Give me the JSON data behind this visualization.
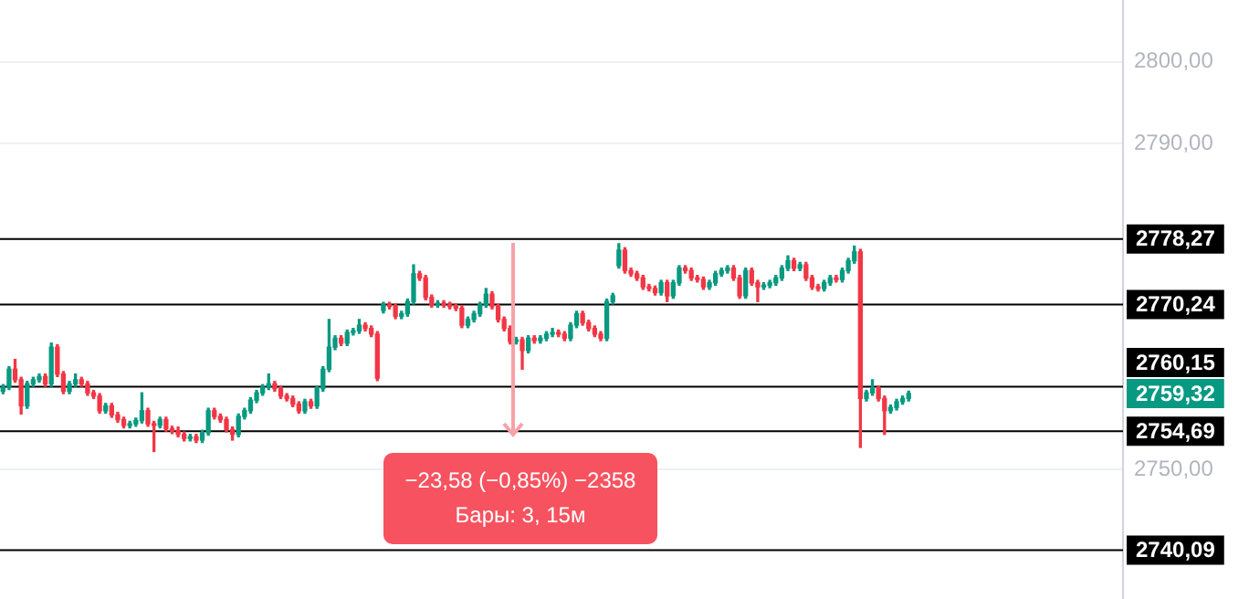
{
  "chart_data": {
    "type": "candlestick",
    "categories": [
      null,
      null,
      null,
      null,
      null,
      null,
      null,
      null,
      null,
      null,
      null,
      null,
      null,
      null,
      null,
      null,
      null,
      null,
      null,
      null,
      null,
      null,
      null,
      null,
      null,
      null,
      null,
      null,
      null,
      null,
      null,
      null,
      null,
      null,
      null,
      null,
      null,
      null,
      null,
      null,
      null,
      null,
      null,
      null,
      null,
      null,
      null,
      null,
      null,
      null,
      null,
      null,
      null,
      null,
      null,
      null,
      null,
      null,
      null,
      null,
      null,
      null,
      null,
      null,
      null,
      null,
      null,
      null,
      null,
      null,
      null,
      null,
      null,
      null,
      null,
      null,
      null,
      null,
      null,
      null,
      null,
      null,
      null,
      null,
      null,
      null,
      null,
      null,
      null,
      null,
      null,
      null,
      null,
      null,
      null,
      null,
      null,
      null,
      null,
      null,
      null,
      null,
      null,
      null,
      null,
      null,
      null,
      null,
      null,
      null,
      null,
      null,
      null,
      null,
      null,
      null,
      null,
      null,
      null,
      null,
      null,
      null,
      null,
      null,
      null,
      null,
      null,
      null,
      null,
      null,
      null,
      null,
      null,
      null,
      null,
      null,
      null,
      null,
      null,
      null,
      null,
      null,
      null,
      null,
      null,
      null,
      null,
      null,
      null,
      null,
      null,
      null,
      null,
      null,
      null,
      null,
      null,
      null,
      null,
      null,
      null,
      null,
      null,
      null,
      null,
      null,
      null,
      null,
      null,
      null,
      null,
      null,
      null,
      null,
      null,
      null,
      null,
      null,
      null,
      null,
      null,
      null,
      null,
      null,
      null,
      null
    ],
    "ohlc": [
      [
        2759.6,
        2760.4,
        2759.3,
        2760.1
      ],
      [
        2760.1,
        2762.6,
        2759.8,
        2762.3
      ],
      [
        2762.3,
        2763.5,
        2760.7,
        2761.0
      ],
      [
        2761.0,
        2761.3,
        2756.8,
        2757.8
      ],
      [
        2757.8,
        2760.8,
        2757.5,
        2760.5
      ],
      [
        2760.5,
        2761.3,
        2760.2,
        2761.0
      ],
      [
        2761.0,
        2761.7,
        2760.7,
        2761.4
      ],
      [
        2761.4,
        2761.7,
        2760.2,
        2760.5
      ],
      [
        2760.5,
        2765.5,
        2760.2,
        2765.0
      ],
      [
        2765.0,
        2765.3,
        2761.4,
        2761.7
      ],
      [
        2761.7,
        2762.0,
        2759.3,
        2759.6
      ],
      [
        2759.6,
        2760.8,
        2759.3,
        2760.5
      ],
      [
        2760.5,
        2761.7,
        2760.2,
        2761.0
      ],
      [
        2761.0,
        2761.3,
        2760.2,
        2760.5
      ],
      [
        2760.5,
        2760.8,
        2759.1,
        2759.4
      ],
      [
        2759.4,
        2759.7,
        2758.7,
        2759.0
      ],
      [
        2759.0,
        2759.3,
        2756.9,
        2757.2
      ],
      [
        2757.2,
        2758.1,
        2756.9,
        2757.8
      ],
      [
        2757.8,
        2758.1,
        2756.4,
        2756.7
      ],
      [
        2756.7,
        2757.0,
        2755.8,
        2756.1
      ],
      [
        2756.1,
        2756.4,
        2755.1,
        2755.4
      ],
      [
        2755.4,
        2755.9,
        2755.1,
        2755.6
      ],
      [
        2755.6,
        2756.3,
        2755.3,
        2756.0
      ],
      [
        2756.0,
        2759.4,
        2755.7,
        2757.2
      ],
      [
        2757.2,
        2757.5,
        2755.3,
        2755.6
      ],
      [
        2755.6,
        2755.9,
        2752.2,
        2755.4
      ],
      [
        2755.4,
        2756.4,
        2755.1,
        2756.1
      ],
      [
        2756.1,
        2756.4,
        2754.7,
        2755.0
      ],
      [
        2755.0,
        2755.3,
        2754.4,
        2754.7
      ],
      [
        2754.7,
        2755.2,
        2754.0,
        2754.3
      ],
      [
        2754.3,
        2754.6,
        2753.5,
        2753.8
      ],
      [
        2753.8,
        2754.3,
        2753.5,
        2754.0
      ],
      [
        2754.0,
        2754.3,
        2753.3,
        2753.6
      ],
      [
        2753.6,
        2754.8,
        2753.3,
        2754.5
      ],
      [
        2754.5,
        2757.5,
        2754.2,
        2757.2
      ],
      [
        2757.2,
        2757.5,
        2756.2,
        2756.5
      ],
      [
        2756.5,
        2756.8,
        2755.8,
        2756.1
      ],
      [
        2756.1,
        2756.4,
        2754.6,
        2754.9
      ],
      [
        2754.9,
        2755.2,
        2753.6,
        2754.3
      ],
      [
        2754.3,
        2756.8,
        2754.0,
        2756.5
      ],
      [
        2756.5,
        2757.5,
        2756.2,
        2757.2
      ],
      [
        2757.2,
        2758.8,
        2756.9,
        2758.5
      ],
      [
        2758.5,
        2759.7,
        2758.2,
        2759.4
      ],
      [
        2759.4,
        2760.4,
        2759.1,
        2760.1
      ],
      [
        2760.1,
        2761.7,
        2759.8,
        2760.5
      ],
      [
        2760.5,
        2760.8,
        2759.6,
        2759.9
      ],
      [
        2759.9,
        2760.2,
        2758.7,
        2759.0
      ],
      [
        2759.0,
        2759.3,
        2758.4,
        2758.7
      ],
      [
        2758.7,
        2759.0,
        2757.7,
        2758.0
      ],
      [
        2758.0,
        2758.3,
        2756.9,
        2757.2
      ],
      [
        2757.2,
        2758.6,
        2756.9,
        2758.3
      ],
      [
        2758.3,
        2758.6,
        2757.5,
        2757.8
      ],
      [
        2757.8,
        2760.2,
        2757.5,
        2759.9
      ],
      [
        2759.9,
        2762.6,
        2759.6,
        2762.3
      ],
      [
        2762.3,
        2768.4,
        2762.0,
        2765.0
      ],
      [
        2765.0,
        2766.4,
        2764.7,
        2766.1
      ],
      [
        2766.1,
        2766.4,
        2765.2,
        2765.5
      ],
      [
        2765.5,
        2767.1,
        2765.2,
        2766.8
      ],
      [
        2766.8,
        2767.3,
        2766.5,
        2767.0
      ],
      [
        2767.0,
        2768.4,
        2766.7,
        2767.7
      ],
      [
        2767.7,
        2768.0,
        2767.0,
        2767.3
      ],
      [
        2767.3,
        2767.6,
        2766.3,
        2766.6
      ],
      [
        2766.6,
        2766.9,
        2760.9,
        2761.2
      ],
      [
        2769.5,
        2770.5,
        2769.2,
        2770.2
      ],
      [
        2770.2,
        2770.5,
        2769.7,
        2770.0
      ],
      [
        2770.0,
        2770.3,
        2768.5,
        2768.8
      ],
      [
        2768.8,
        2769.4,
        2768.5,
        2769.1
      ],
      [
        2769.1,
        2770.9,
        2768.8,
        2770.6
      ],
      [
        2770.6,
        2775.1,
        2770.3,
        2774.0
      ],
      [
        2774.0,
        2774.3,
        2773.2,
        2773.5
      ],
      [
        2773.5,
        2773.8,
        2770.8,
        2771.1
      ],
      [
        2771.1,
        2771.4,
        2769.9,
        2770.2
      ],
      [
        2770.2,
        2770.7,
        2769.9,
        2770.4
      ],
      [
        2770.4,
        2770.7,
        2769.9,
        2770.2
      ],
      [
        2770.2,
        2770.5,
        2769.7,
        2770.0
      ],
      [
        2770.0,
        2770.3,
        2769.5,
        2769.8
      ],
      [
        2769.8,
        2770.1,
        2767.4,
        2767.7
      ],
      [
        2767.7,
        2768.7,
        2767.4,
        2768.4
      ],
      [
        2768.4,
        2769.4,
        2768.1,
        2769.1
      ],
      [
        2769.1,
        2770.5,
        2768.8,
        2770.2
      ],
      [
        2770.2,
        2772.2,
        2769.9,
        2771.5
      ],
      [
        2771.5,
        2771.8,
        2769.7,
        2770.0
      ],
      [
        2770.0,
        2770.3,
        2768.1,
        2768.4
      ],
      [
        2768.4,
        2768.7,
        2767.0,
        2767.3
      ],
      [
        2767.3,
        2767.6,
        2765.4,
        2765.7
      ],
      [
        2765.7,
        2766.2,
        2765.4,
        2765.9
      ],
      [
        2765.9,
        2766.2,
        2762.3,
        2764.6
      ],
      [
        2764.6,
        2766.4,
        2764.3,
        2766.1
      ],
      [
        2766.1,
        2766.4,
        2765.5,
        2765.8
      ],
      [
        2765.8,
        2766.4,
        2765.5,
        2766.1
      ],
      [
        2766.1,
        2766.9,
        2765.8,
        2766.6
      ],
      [
        2766.6,
        2767.3,
        2766.3,
        2766.8
      ],
      [
        2766.8,
        2767.1,
        2766.3,
        2766.6
      ],
      [
        2766.6,
        2766.9,
        2765.8,
        2766.1
      ],
      [
        2766.1,
        2768.0,
        2765.8,
        2767.7
      ],
      [
        2767.7,
        2769.4,
        2767.4,
        2769.1
      ],
      [
        2769.1,
        2769.4,
        2767.7,
        2768.0
      ],
      [
        2768.0,
        2768.3,
        2767.0,
        2767.3
      ],
      [
        2767.3,
        2767.6,
        2766.3,
        2766.6
      ],
      [
        2766.6,
        2766.9,
        2765.8,
        2766.1
      ],
      [
        2766.1,
        2770.9,
        2765.8,
        2770.6
      ],
      [
        2770.6,
        2771.6,
        2770.3,
        2771.3
      ],
      [
        2775.0,
        2777.7,
        2774.7,
        2776.9
      ],
      [
        2776.9,
        2777.2,
        2774.1,
        2774.4
      ],
      [
        2774.4,
        2774.7,
        2773.7,
        2774.0
      ],
      [
        2774.0,
        2774.3,
        2773.2,
        2773.5
      ],
      [
        2773.5,
        2773.8,
        2772.1,
        2772.4
      ],
      [
        2772.4,
        2772.7,
        2771.9,
        2772.2
      ],
      [
        2772.2,
        2772.5,
        2771.4,
        2771.7
      ],
      [
        2771.7,
        2773.2,
        2771.4,
        2772.9
      ],
      [
        2772.9,
        2773.2,
        2770.6,
        2771.3
      ],
      [
        2771.3,
        2773.2,
        2771.0,
        2772.9
      ],
      [
        2772.9,
        2775.0,
        2772.6,
        2774.7
      ],
      [
        2774.7,
        2775.0,
        2774.1,
        2774.4
      ],
      [
        2774.4,
        2774.7,
        2773.2,
        2773.5
      ],
      [
        2773.5,
        2773.8,
        2773.0,
        2773.3
      ],
      [
        2773.3,
        2773.6,
        2772.1,
        2772.4
      ],
      [
        2772.4,
        2773.2,
        2772.1,
        2772.9
      ],
      [
        2772.9,
        2774.3,
        2772.6,
        2774.0
      ],
      [
        2774.0,
        2774.7,
        2773.7,
        2774.4
      ],
      [
        2774.4,
        2775.0,
        2774.1,
        2774.7
      ],
      [
        2774.7,
        2775.0,
        2773.2,
        2773.5
      ],
      [
        2773.5,
        2773.8,
        2771.0,
        2771.3
      ],
      [
        2771.3,
        2774.7,
        2771.0,
        2774.4
      ],
      [
        2774.4,
        2774.7,
        2772.6,
        2772.9
      ],
      [
        2772.9,
        2773.2,
        2770.6,
        2772.4
      ],
      [
        2772.4,
        2772.9,
        2772.1,
        2772.6
      ],
      [
        2772.6,
        2773.2,
        2772.3,
        2772.9
      ],
      [
        2772.9,
        2773.8,
        2772.6,
        2773.5
      ],
      [
        2773.5,
        2775.0,
        2773.2,
        2774.7
      ],
      [
        2774.7,
        2776.2,
        2774.4,
        2775.6
      ],
      [
        2775.6,
        2775.9,
        2774.4,
        2774.7
      ],
      [
        2774.7,
        2775.4,
        2774.4,
        2775.1
      ],
      [
        2775.1,
        2775.4,
        2773.2,
        2773.5
      ],
      [
        2773.5,
        2773.8,
        2772.1,
        2772.4
      ],
      [
        2772.4,
        2772.7,
        2771.9,
        2772.2
      ],
      [
        2772.2,
        2773.2,
        2771.9,
        2772.9
      ],
      [
        2772.9,
        2773.8,
        2772.6,
        2773.5
      ],
      [
        2773.5,
        2773.8,
        2773.0,
        2773.3
      ],
      [
        2773.3,
        2774.7,
        2773.0,
        2774.4
      ],
      [
        2774.4,
        2775.9,
        2774.1,
        2775.6
      ],
      [
        2775.6,
        2777.4,
        2775.3,
        2776.7
      ],
      [
        2776.7,
        2777.0,
        2752.7,
        2758.7
      ],
      [
        2758.7,
        2759.7,
        2758.4,
        2759.4
      ],
      [
        2759.4,
        2761.0,
        2759.1,
        2759.9
      ],
      [
        2759.9,
        2760.2,
        2758.4,
        2758.7
      ],
      [
        2758.7,
        2759.0,
        2754.3,
        2757.2
      ],
      [
        2757.2,
        2757.9,
        2756.9,
        2757.6
      ],
      [
        2757.6,
        2758.6,
        2757.3,
        2758.3
      ],
      [
        2758.3,
        2759.0,
        2758.0,
        2758.7
      ],
      [
        2758.7,
        2759.6,
        2758.4,
        2759.32
      ],
      null,
      null,
      null,
      null,
      null,
      null,
      null,
      null,
      null,
      null,
      null,
      null,
      null,
      null,
      null,
      null,
      null,
      null,
      null,
      null,
      null,
      null,
      null,
      null,
      null,
      null,
      null,
      null,
      null,
      null,
      null,
      null,
      null,
      null,
      null
    ],
    "ylim": [
      2734.1,
      2807.6
    ],
    "yticks": [
      {
        "value": 2750,
        "label": "2750,00"
      },
      {
        "value": 2790,
        "label": "2790,00"
      },
      {
        "value": 2800,
        "label": "2800,00"
      }
    ],
    "tick_labels": "y",
    "grid": "y",
    "ref_lines": [
      {
        "axis": "y",
        "value": 2778.27,
        "label": "2778,27",
        "color": "#000000"
      },
      {
        "axis": "y",
        "value": 2770.24,
        "label": "2770,24",
        "color": "#000000"
      },
      {
        "axis": "y",
        "value": 2760.15,
        "label": "2760,15",
        "color": "#000000"
      },
      {
        "axis": "y",
        "value": 2754.69,
        "label": "2754,69",
        "color": "#000000"
      },
      {
        "axis": "y",
        "value": 2740.09,
        "label": "2740,09",
        "color": "#000000"
      }
    ],
    "annotations": [
      "−23,58 (−0,85%) −2358",
      "Бары: 3, 15м",
      "2759,32"
    ]
  }
}
